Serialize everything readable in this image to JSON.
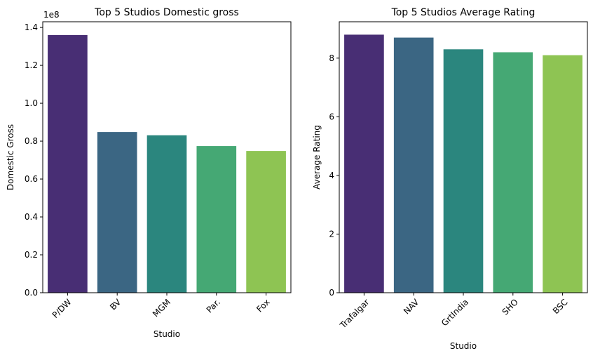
{
  "chart_data": [
    {
      "type": "bar",
      "title": "Top 5 Studios Domestic gross",
      "xlabel": "Studio",
      "ylabel": "Domestic Gross",
      "offset_label": "1e8",
      "categories": [
        "P/DW",
        "BV",
        "MGM",
        "Par.",
        "Fox"
      ],
      "values": [
        136000000,
        84800000,
        83100000,
        77400000,
        74800000
      ],
      "ylim": [
        0,
        143000000
      ],
      "yticks": [
        0,
        20000000,
        40000000,
        60000000,
        80000000,
        100000000,
        120000000,
        140000000
      ],
      "ytick_labels": [
        "0.0",
        "0.2",
        "0.4",
        "0.6",
        "0.8",
        "1.0",
        "1.2",
        "1.4"
      ],
      "xtick_rotation": 45,
      "colors": [
        "#482e74",
        "#3b6683",
        "#2b867e",
        "#45a874",
        "#8ec453"
      ],
      "grid": false
    },
    {
      "type": "bar",
      "title": "Top 5 Studios Average Rating",
      "xlabel": "Studio",
      "ylabel": "Average Rating",
      "categories": [
        "Trafalgar",
        "NAV",
        "GrtIndia",
        "SHO",
        "BSC"
      ],
      "values": [
        8.8,
        8.7,
        8.3,
        8.2,
        8.1
      ],
      "ylim": [
        0,
        9.24
      ],
      "yticks": [
        0,
        2,
        4,
        6,
        8
      ],
      "ytick_labels": [
        "0",
        "2",
        "4",
        "6",
        "8"
      ],
      "xtick_rotation": 45,
      "colors": [
        "#482e74",
        "#3b6683",
        "#2b867e",
        "#45a874",
        "#8ec453"
      ],
      "grid": false
    }
  ]
}
